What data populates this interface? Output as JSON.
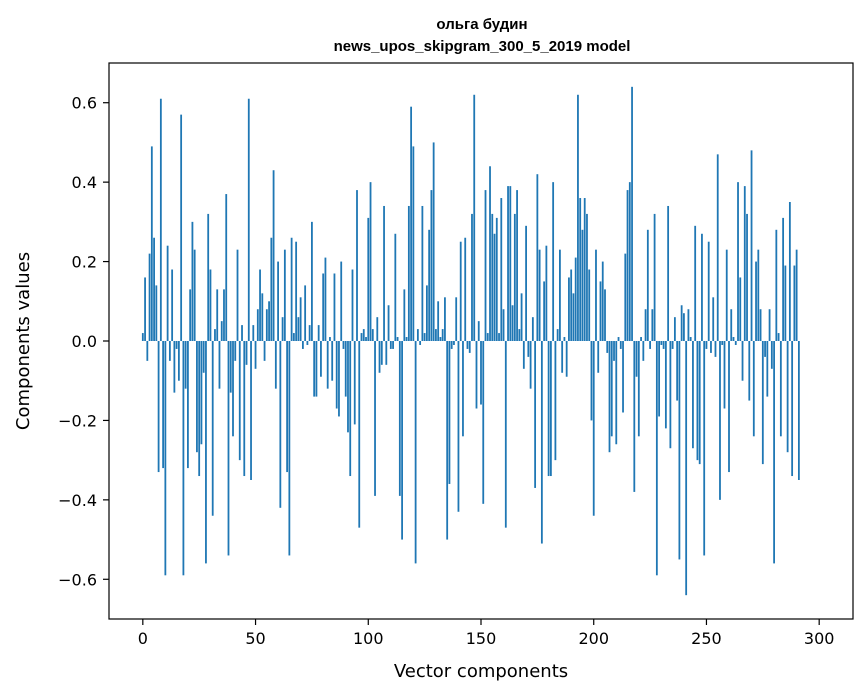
{
  "chart_data": {
    "type": "bar",
    "title": "ольга будин",
    "subtitle": "news_upos_skipgram_300_5_2019 model",
    "xlabel": "Vector components",
    "ylabel": "Components values",
    "xlim": [
      -15,
      315
    ],
    "ylim": [
      -0.7,
      0.7
    ],
    "xticks": [
      0,
      50,
      100,
      150,
      200,
      250,
      300
    ],
    "yticks": [
      -0.6,
      -0.4,
      -0.2,
      0.0,
      0.2,
      0.4,
      0.6
    ],
    "x_tick_labels": [
      "0",
      "50",
      "100",
      "150",
      "200",
      "250",
      "300"
    ],
    "y_tick_labels": [
      "−0.6",
      "−0.4",
      "−0.2",
      "0.0",
      "0.2",
      "0.4",
      "0.6"
    ],
    "bar_color": "#1f77b4",
    "grid": false,
    "legend": "none",
    "x_start": 0,
    "values": [
      0.02,
      0.16,
      -0.05,
      0.22,
      0.49,
      0.26,
      0.14,
      -0.33,
      0.61,
      -0.32,
      -0.59,
      0.24,
      -0.05,
      0.18,
      -0.13,
      -0.02,
      -0.1,
      0.57,
      -0.59,
      -0.12,
      -0.32,
      0.13,
      0.3,
      0.23,
      -0.28,
      -0.34,
      -0.26,
      -0.08,
      -0.56,
      0.32,
      0.18,
      -0.44,
      0.03,
      0.13,
      -0.12,
      0.05,
      0.13,
      0.37,
      -0.54,
      -0.13,
      -0.24,
      -0.05,
      0.23,
      -0.3,
      0.04,
      -0.34,
      -0.06,
      0.61,
      -0.35,
      0.04,
      -0.07,
      0.08,
      0.18,
      0.12,
      -0.05,
      0.08,
      0.1,
      0.26,
      0.43,
      -0.12,
      0.2,
      -0.42,
      0.06,
      0.23,
      -0.33,
      -0.54,
      0.26,
      0.02,
      0.25,
      0.06,
      0.11,
      -0.02,
      0.14,
      -0.01,
      0.04,
      0.3,
      -0.14,
      -0.14,
      0.04,
      -0.09,
      0.17,
      0.21,
      -0.12,
      0.01,
      -0.1,
      0.17,
      -0.17,
      -0.19,
      0.2,
      -0.02,
      -0.14,
      -0.23,
      -0.34,
      0.18,
      -0.21,
      0.38,
      -0.47,
      0.02,
      0.03,
      0.01,
      0.31,
      0.4,
      0.03,
      -0.39,
      0.06,
      -0.08,
      -0.06,
      0.34,
      -0.06,
      0.09,
      -0.02,
      -0.02,
      0.27,
      0.01,
      -0.39,
      -0.5,
      0.13,
      0.01,
      0.34,
      0.59,
      0.49,
      -0.56,
      0.03,
      -0.01,
      0.34,
      0.02,
      0.14,
      0.28,
      0.38,
      0.5,
      0.03,
      0.1,
      0.01,
      0.03,
      0.11,
      -0.5,
      -0.36,
      -0.02,
      -0.01,
      0.11,
      -0.43,
      0.25,
      -0.24,
      0.26,
      -0.02,
      -0.03,
      0.32,
      0.62,
      -0.17,
      0.05,
      -0.16,
      -0.41,
      0.38,
      0.02,
      0.44,
      0.32,
      0.27,
      0.31,
      0.02,
      0.36,
      0.08,
      -0.47,
      0.39,
      0.39,
      0.09,
      0.32,
      0.38,
      0.03,
      0.12,
      -0.07,
      0.29,
      -0.04,
      -0.12,
      0.06,
      -0.37,
      0.42,
      0.23,
      -0.51,
      0.15,
      0.24,
      -0.34,
      -0.34,
      0.4,
      -0.3,
      0.03,
      0.23,
      -0.08,
      0.01,
      -0.09,
      0.16,
      0.18,
      0.12,
      0.21,
      0.62,
      0.36,
      0.28,
      0.36,
      0.32,
      0.18,
      -0.2,
      -0.44,
      0.23,
      -0.08,
      0.15,
      0.2,
      0.13,
      -0.03,
      -0.28,
      -0.24,
      -0.05,
      -0.26,
      0.01,
      -0.02,
      -0.18,
      0.22,
      0.38,
      0.4,
      0.64,
      -0.38,
      -0.09,
      -0.24,
      0.01,
      -0.05,
      0.08,
      0.28,
      -0.02,
      0.08,
      0.32,
      -0.59,
      -0.19,
      -0.01,
      -0.02,
      -0.22,
      0.34,
      -0.27,
      -0.02,
      0.06,
      -0.15,
      -0.55,
      0.09,
      0.07,
      -0.64,
      0.08,
      0.01,
      -0.27,
      0.29,
      -0.3,
      -0.31,
      0.27,
      -0.54,
      -0.02,
      0.25,
      -0.03,
      0.11,
      -0.04,
      0.47,
      -0.4,
      -0.01,
      -0.17,
      0.23,
      -0.33,
      0.08,
      0.01,
      -0.01,
      0.4,
      0.16,
      -0.1,
      0.39,
      0.32,
      -0.15,
      0.48,
      -0.24,
      0.2,
      0.23,
      0.08,
      -0.31,
      -0.04,
      -0.14,
      0.08,
      -0.07,
      -0.56,
      0.28,
      0.02,
      -0.24,
      0.31,
      0.19,
      -0.28,
      0.35,
      -0.34,
      0.19,
      0.23,
      -0.35
    ]
  }
}
